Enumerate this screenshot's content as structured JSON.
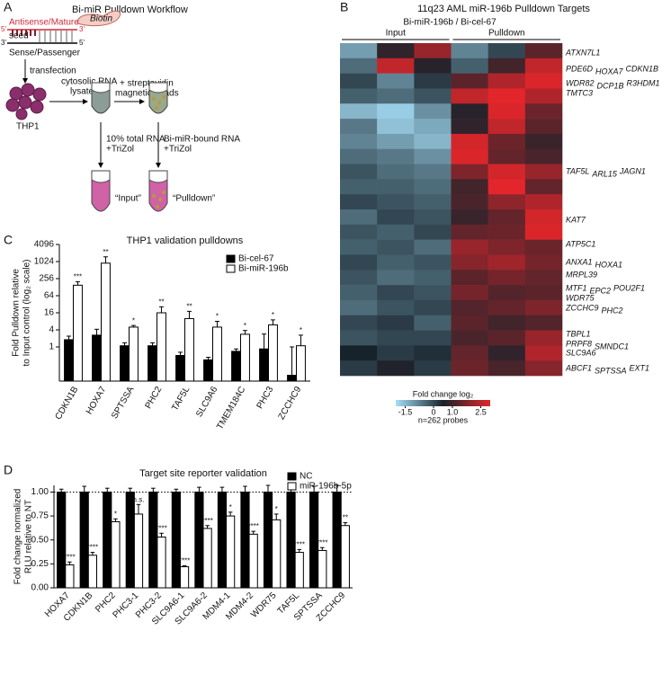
{
  "panel_labels": [
    "A",
    "B",
    "C",
    "D"
  ],
  "workflow": {
    "title": "Bi-miR Pulldown Workflow",
    "biotin": "Biotin",
    "antisense": "Antisense/Mature",
    "seed": "seed",
    "prime5_top": "5'",
    "prime3_top": "3'",
    "prime3_bottom": "3'",
    "prime5_bottom": "5'",
    "sense": "Sense/Passenger",
    "transfection": "transfection",
    "cell": "THP1",
    "lysate": [
      "cytosolic RNA",
      "lysate"
    ],
    "beads": [
      "+ streptavidin",
      "magnetic beads"
    ],
    "input_step": [
      "10% total RNA",
      "+TriZol"
    ],
    "pulldown_step": [
      "Bi-miR-bound RNA",
      "+TriZol"
    ],
    "input_tube": "“Input”",
    "pulldown_tube": "“Pulldown”"
  },
  "chart_data": [
    {
      "type": "heatmap",
      "title": "11q23 AML miR-196b Pulldown Targets",
      "subtitle": "Bi-miR-196b / Bi-cel-67",
      "column_groups": [
        "Input",
        "Pulldown"
      ],
      "values": [
        [
          -1.0,
          0.3,
          1.5,
          -0.8,
          -0.3,
          0.8
        ],
        [
          -0.6,
          2.0,
          0.2,
          -0.5,
          0.5,
          2.0
        ],
        [
          -0.3,
          -0.8,
          -0.2,
          0.8,
          1.8,
          2.3
        ],
        [
          -0.5,
          -0.6,
          -0.4,
          2.0,
          2.5,
          1.8
        ],
        [
          -1.2,
          -1.4,
          -0.9,
          0.2,
          2.3,
          1.0
        ],
        [
          -0.7,
          -1.3,
          -1.1,
          0.3,
          2.0,
          0.8
        ],
        [
          -0.8,
          -1.0,
          -1.2,
          2.2,
          1.0,
          0.4
        ],
        [
          -0.6,
          -0.7,
          -0.9,
          2.3,
          0.9,
          0.6
        ],
        [
          -0.4,
          -0.6,
          -0.7,
          1.2,
          2.2,
          1.5
        ],
        [
          -0.5,
          -0.5,
          -0.6,
          0.5,
          2.4,
          0.9
        ],
        [
          -0.3,
          -0.4,
          -0.5,
          0.6,
          1.4,
          1.8
        ],
        [
          -0.6,
          -0.3,
          -0.4,
          0.4,
          0.9,
          2.2
        ],
        [
          -0.4,
          -0.5,
          -0.3,
          0.9,
          1.0,
          2.3
        ],
        [
          -0.5,
          -0.4,
          -0.6,
          1.5,
          1.2,
          1.0
        ],
        [
          -0.3,
          -0.5,
          -0.4,
          1.3,
          1.6,
          1.1
        ],
        [
          -0.4,
          -0.6,
          -0.5,
          0.8,
          1.1,
          0.9
        ],
        [
          -0.5,
          -0.3,
          -0.4,
          1.1,
          0.7,
          0.8
        ],
        [
          -0.6,
          -0.4,
          -0.3,
          0.7,
          0.9,
          1.2
        ],
        [
          -0.3,
          -0.2,
          -0.5,
          0.8,
          0.5,
          0.7
        ],
        [
          -0.4,
          -0.3,
          -0.3,
          0.6,
          0.8,
          1.5
        ],
        [
          0.0,
          -0.2,
          -0.1,
          0.9,
          0.3,
          1.8
        ],
        [
          -0.2,
          0.1,
          -0.2,
          1.0,
          0.6,
          1.3
        ]
      ],
      "gene_labels": [
        [
          "ATXN7L1"
        ],
        [
          "PDE6D",
          "HOXA7",
          "CDKN1B"
        ],
        [
          "WDR82",
          "DCP1B",
          "R3HDM1"
        ],
        [
          "TMTC3"
        ],
        [
          "TAF5L",
          "ARL15",
          "JAGN1"
        ],
        [
          "KAT7"
        ],
        [
          "ATP5C1"
        ],
        [
          "ANXA1",
          "HOXA1"
        ],
        [
          "MRPL39"
        ],
        [
          "MTF1",
          "EPC2",
          "POU2F1"
        ],
        [
          "WDR75"
        ],
        [
          "ZCCHC9",
          "PHC2"
        ],
        [
          "TBPL1"
        ],
        [
          "PRPF8",
          "SMNDC1"
        ],
        [
          "SLC9A6"
        ],
        [
          "ABCF1",
          "SPTSSA",
          "EXT1"
        ]
      ],
      "colorbar": {
        "label": "Fold change log₂",
        "lim": [
          -2,
          3
        ],
        "ticks": [
          -1.5,
          0,
          {
            "value": 1.0,
            "label": "1.0"
          },
          2.5
        ],
        "colors": [
          "#a6def7",
          "#17232b",
          "#e3262b"
        ],
        "note": "n=262 probes"
      }
    },
    {
      "type": "bar",
      "title": "THP1 validation pulldowns",
      "ylabel": [
        "Fold Pulldown relative",
        "to Input control (log₂ scale)"
      ],
      "categories": [
        "CDKN1B",
        "HOXA7",
        "SPTSSA",
        "PHC2",
        "TAF5L",
        "SLC9A6",
        "TMEM184C",
        "PHC3",
        "ZCCHC9"
      ],
      "series": [
        {
          "name": "Bi-cel-67",
          "color": "#000000",
          "values": [
            1.8,
            2.6,
            1.1,
            1.1,
            0.5,
            0.35,
            0.7,
            0.85,
            0.1
          ],
          "errors": [
            0.6,
            1.6,
            0.3,
            0.3,
            0.15,
            0.08,
            0.15,
            2.0,
            0.9
          ]
        },
        {
          "name": "Bi-miR-196b",
          "color": "#ffffff",
          "values": [
            150,
            900,
            5,
            16,
            10,
            5,
            2.8,
            6,
            1.1
          ],
          "errors": [
            50,
            600,
            0.7,
            10,
            8,
            3,
            1,
            3,
            1.5
          ],
          "annotations": [
            "***",
            "**",
            "*",
            "**",
            "**",
            "*",
            "*",
            "*",
            "*"
          ]
        }
      ],
      "log_base": 2,
      "ylim": [
        0.0625,
        4096
      ],
      "yticks": [
        1,
        4,
        16,
        64,
        256,
        1024,
        4096
      ],
      "legend": "upper right"
    },
    {
      "type": "bar",
      "title": "Target site reporter validation",
      "ylabel": [
        "Fold change normalized",
        "RLU relative to NT"
      ],
      "categories": [
        "HOXA7",
        "CDKN1B",
        "PHC2",
        "PHC3-1",
        "PHC3-2",
        "SLC9A6-1",
        "SLC9A6-2",
        "MDM4-1",
        "MDM4-2",
        "WDR75",
        "TAF5L",
        "SPTSSA",
        "ZCCHC9"
      ],
      "series": [
        {
          "name": "NC",
          "color": "#000000",
          "values": [
            1,
            1,
            1,
            1,
            1,
            1,
            1,
            1,
            1,
            1,
            1,
            1,
            1
          ],
          "errors": [
            0.03,
            0.06,
            0.04,
            0.04,
            0.04,
            0.03,
            0.05,
            0.05,
            0.06,
            0.07,
            0.06,
            0.06,
            0.07
          ]
        },
        {
          "name": "miR-196b-5p",
          "color": "#ffffff",
          "values": [
            0.24,
            0.34,
            0.69,
            0.77,
            0.53,
            0.22,
            0.62,
            0.75,
            0.56,
            0.71,
            0.37,
            0.39,
            0.65
          ],
          "errors": [
            0.03,
            0.03,
            0.03,
            0.1,
            0.04,
            0.01,
            0.03,
            0.04,
            0.03,
            0.06,
            0.03,
            0.03,
            0.03
          ],
          "annotations": [
            "****",
            "****",
            "*",
            "n.s.",
            "****",
            "****",
            "****",
            "*",
            "****",
            "*",
            "****",
            "****",
            "**"
          ]
        }
      ],
      "ylim": [
        0,
        1.07
      ],
      "yticks": [
        {
          "value": 0,
          "label": "0.00"
        },
        {
          "value": 0.25,
          "label": "0.25"
        },
        {
          "value": 0.5,
          "label": "0.50"
        },
        {
          "value": 0.75,
          "label": "0.75"
        },
        {
          "value": 1,
          "label": "1.00"
        }
      ],
      "hline": 1,
      "legend": "upper right"
    }
  ]
}
